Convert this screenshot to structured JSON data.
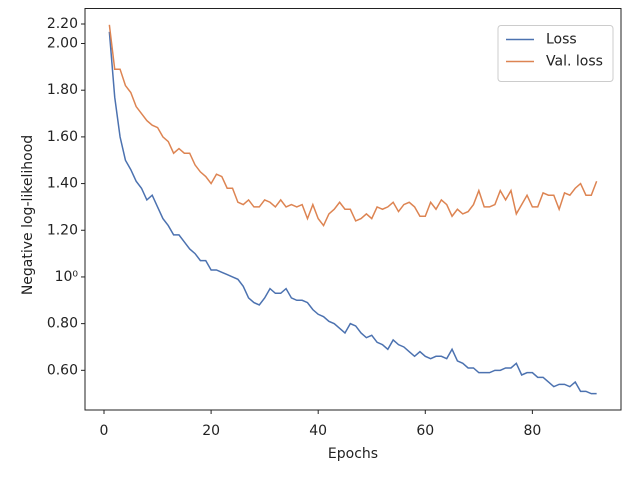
{
  "chart_data": {
    "type": "line",
    "xlabel": "Epochs",
    "ylabel": "Negative log-likelihood",
    "x": [
      1,
      2,
      3,
      4,
      5,
      6,
      7,
      8,
      9,
      10,
      11,
      12,
      13,
      14,
      15,
      16,
      17,
      18,
      19,
      20,
      21,
      22,
      23,
      24,
      25,
      26,
      27,
      28,
      29,
      30,
      31,
      32,
      33,
      34,
      35,
      36,
      37,
      38,
      39,
      40,
      41,
      42,
      43,
      44,
      45,
      46,
      47,
      48,
      49,
      50,
      51,
      52,
      53,
      54,
      55,
      56,
      57,
      58,
      59,
      60,
      61,
      62,
      63,
      64,
      65,
      66,
      67,
      68,
      69,
      70,
      71,
      72,
      73,
      74,
      75,
      76,
      77,
      78,
      79,
      80,
      81,
      82,
      83,
      84,
      85,
      86,
      87,
      88,
      89,
      90,
      91,
      92
    ],
    "series": [
      {
        "name": "Loss",
        "color": "#4c72b0",
        "values": [
          2.05,
          1.77,
          1.6,
          1.5,
          1.46,
          1.41,
          1.38,
          1.33,
          1.35,
          1.3,
          1.25,
          1.22,
          1.18,
          1.18,
          1.15,
          1.12,
          1.1,
          1.07,
          1.07,
          1.03,
          1.03,
          1.02,
          1.01,
          1.0,
          0.99,
          0.96,
          0.91,
          0.89,
          0.88,
          0.91,
          0.95,
          0.93,
          0.93,
          0.95,
          0.91,
          0.9,
          0.9,
          0.89,
          0.86,
          0.84,
          0.83,
          0.81,
          0.8,
          0.78,
          0.76,
          0.8,
          0.79,
          0.76,
          0.74,
          0.75,
          0.72,
          0.71,
          0.69,
          0.73,
          0.71,
          0.7,
          0.68,
          0.66,
          0.68,
          0.66,
          0.65,
          0.66,
          0.66,
          0.65,
          0.69,
          0.64,
          0.63,
          0.61,
          0.61,
          0.59,
          0.59,
          0.59,
          0.6,
          0.6,
          0.61,
          0.61,
          0.63,
          0.58,
          0.59,
          0.59,
          0.57,
          0.57,
          0.55,
          0.53,
          0.54,
          0.54,
          0.53,
          0.55,
          0.51,
          0.51,
          0.5,
          0.5
        ]
      },
      {
        "name": "Val. loss",
        "color": "#dd8452",
        "values": [
          2.08,
          1.89,
          1.89,
          1.82,
          1.79,
          1.73,
          1.7,
          1.67,
          1.65,
          1.64,
          1.6,
          1.58,
          1.53,
          1.55,
          1.53,
          1.53,
          1.48,
          1.45,
          1.43,
          1.4,
          1.44,
          1.43,
          1.38,
          1.38,
          1.32,
          1.31,
          1.33,
          1.3,
          1.3,
          1.33,
          1.32,
          1.3,
          1.33,
          1.3,
          1.31,
          1.3,
          1.31,
          1.25,
          1.31,
          1.25,
          1.22,
          1.27,
          1.29,
          1.32,
          1.29,
          1.29,
          1.24,
          1.25,
          1.27,
          1.25,
          1.3,
          1.29,
          1.3,
          1.32,
          1.28,
          1.31,
          1.32,
          1.3,
          1.26,
          1.26,
          1.32,
          1.29,
          1.33,
          1.31,
          1.26,
          1.29,
          1.27,
          1.28,
          1.31,
          1.37,
          1.3,
          1.3,
          1.31,
          1.37,
          1.33,
          1.37,
          1.27,
          1.31,
          1.35,
          1.3,
          1.3,
          1.36,
          1.35,
          1.35,
          1.29,
          1.36,
          1.35,
          1.38,
          1.4,
          1.35,
          1.35,
          1.41
        ]
      }
    ],
    "xlim": [
      -3.55,
      96.55
    ],
    "xticks": [
      0,
      20,
      40,
      60,
      80
    ],
    "ylim": [
      0.43,
      2.15
    ],
    "yticks": [
      {
        "value": 0.6,
        "label": "0.60"
      },
      {
        "value": 0.8,
        "label": "0.80"
      },
      {
        "value": 1,
        "label": "10⁰"
      },
      {
        "value": 1.2,
        "label": "1.20"
      },
      {
        "value": 1.4,
        "label": "1.40"
      },
      {
        "value": 1.6,
        "label": "1.60"
      },
      {
        "value": 1.8,
        "label": "1.80"
      },
      {
        "value": 2.0,
        "label": "2.00"
      }
    ],
    "annotations": [
      "2.20"
    ],
    "grid": false,
    "legend": "upper right"
  }
}
